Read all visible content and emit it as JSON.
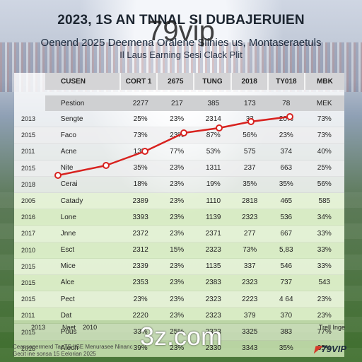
{
  "header": {
    "title": "2023, 1S AN TNNAL SI DUBAJERUIEN",
    "subtitle": "Oenend 2025 Deemena Oralene Siinies us, Montaseraetuls",
    "subtitle2": "Il Laus Earning Sesi Clack Plit"
  },
  "watermark": {
    "top": "79vip",
    "bottom": "3z.com"
  },
  "table": {
    "head": [
      "CUSEN",
      "CORT 1",
      "2675",
      "TUNG",
      "2018",
      "TY018",
      "MBK"
    ],
    "subhead": [
      "Pestion",
      "2277",
      "217",
      "385",
      "173",
      "78",
      "MEK"
    ],
    "rows": [
      {
        "year": "2013",
        "name": "Sengte",
        "v": [
          "25%",
          "23%",
          "2314",
          "33",
          "20%",
          "73%"
        ]
      },
      {
        "year": "2015",
        "name": "Faco",
        "v": [
          "73%",
          "23%",
          "87%",
          "56%",
          "23%",
          "73%"
        ]
      },
      {
        "year": "2011",
        "name": "Acne",
        "v": [
          "13%",
          "77%",
          "53%",
          "575",
          "374",
          "40%"
        ]
      },
      {
        "year": "2015",
        "name": "Nite",
        "v": [
          "35%",
          "23%",
          "1311",
          "237",
          "663",
          "25%"
        ]
      },
      {
        "year": "2018",
        "name": "Cerai",
        "v": [
          "18%",
          "23%",
          "19%",
          "35%",
          "35%",
          "56%"
        ]
      },
      {
        "year": "2005",
        "name": "Catady",
        "v": [
          "2389",
          "23%",
          "1110",
          "2818",
          "465",
          "585"
        ]
      },
      {
        "year": "2016",
        "name": "Lone",
        "v": [
          "3393",
          "23%",
          "1139",
          "2323",
          "536",
          "34%"
        ]
      },
      {
        "year": "2017",
        "name": "Jnne",
        "v": [
          "2372",
          "23%",
          "2371",
          "277",
          "667",
          "33%"
        ]
      },
      {
        "year": "2010",
        "name": "Esct",
        "v": [
          "2312",
          "15%",
          "2323",
          "73%",
          "5,83",
          "33%"
        ]
      },
      {
        "year": "2015",
        "name": "Mice",
        "v": [
          "2339",
          "23%",
          "1135",
          "337",
          "546",
          "33%"
        ]
      },
      {
        "year": "2015",
        "name": "Alce",
        "v": [
          "2353",
          "23%",
          "2383",
          "2323",
          "737",
          "543"
        ]
      },
      {
        "year": "2015",
        "name": "Pect",
        "v": [
          "23%",
          "23%",
          "2323",
          "2223",
          "4 64",
          "23%"
        ]
      },
      {
        "year": "2011",
        "name": "Dat",
        "v": [
          "2220",
          "23%",
          "2323",
          "379",
          "370",
          "23%"
        ]
      },
      {
        "year": "2015",
        "name": "Pous",
        "v": [
          "33%",
          "25%",
          "2323",
          "3325",
          "383",
          "77%"
        ]
      },
      {
        "year": "2015",
        "name": "Alech",
        "v": [
          "39%",
          "23%",
          "2330",
          "3343",
          "35%",
          "35%"
        ]
      }
    ],
    "green_from": 5
  },
  "footer_axis": [
    "2013",
    "Naet",
    "2010"
  ],
  "footer_right": "Trell Inge",
  "footer_text": [
    "Ceansapermerd Tar TS LSE Menurasee Ninanc",
    "Gecit ine sonsa 15 Eelorian 2025"
  ],
  "logo": "79VIP",
  "curve": {
    "color": "#d8221f",
    "points": [
      0,
      1,
      2,
      3,
      4,
      5,
      6
    ]
  }
}
